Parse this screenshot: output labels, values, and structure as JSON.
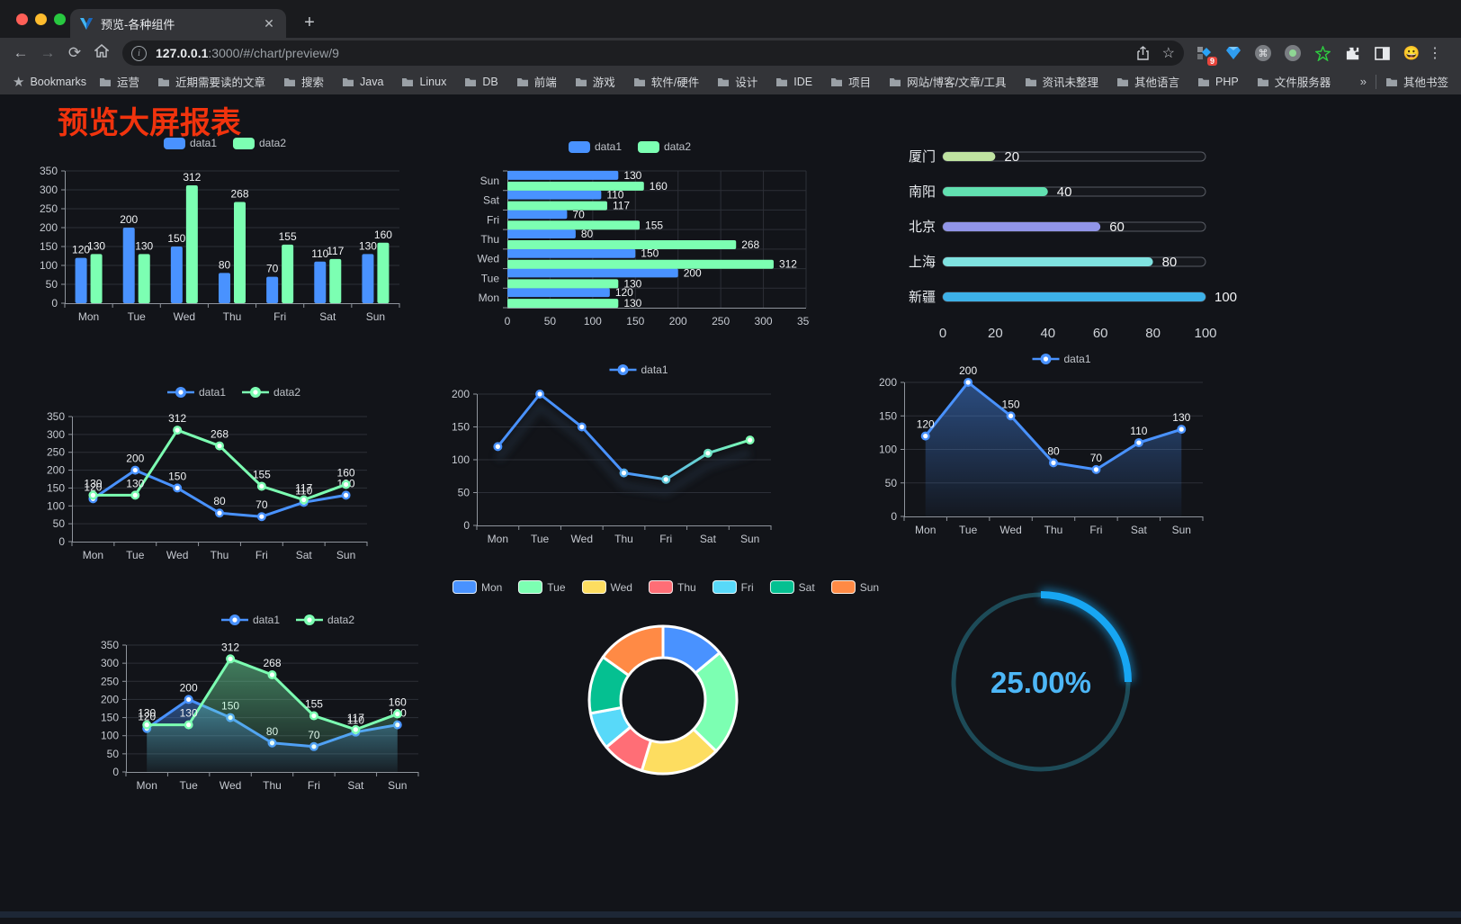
{
  "browser": {
    "tab_title": "预览-各种组件",
    "close_glyph": "✕",
    "new_tab_glyph": "+",
    "url_host": "127.0.0.1",
    "url_rest": ":3000/#/chart/preview/9",
    "bookmarks_label": "Bookmarks",
    "bookmarks": [
      "运营",
      "近期需要读的文章",
      "搜索",
      "Java",
      "Linux",
      "DB",
      "前端",
      "游戏",
      "软件/硬件",
      "设计",
      "IDE",
      "项目",
      "网站/博客/文章/工具",
      "资讯未整理",
      "其他语言",
      "PHP",
      "文件服务器"
    ],
    "overflow_chevron": "»",
    "other_bookmarks": "其他书签",
    "extension_badge": "9"
  },
  "page": {
    "title": "预览大屏报表",
    "title_color": "#f1330d"
  },
  "chart_data": [
    {
      "id": "bar",
      "type": "bar",
      "categories": [
        "Mon",
        "Tue",
        "Wed",
        "Thu",
        "Fri",
        "Sat",
        "Sun"
      ],
      "series": [
        {
          "name": "data1",
          "color": "#4992ff",
          "values": [
            120,
            200,
            150,
            80,
            70,
            110,
            130
          ]
        },
        {
          "name": "data2",
          "color": "#7cffb2",
          "values": [
            130,
            130,
            312,
            268,
            155,
            117,
            160
          ]
        }
      ],
      "ylim": [
        0,
        350
      ],
      "ystep": 50,
      "grid": true,
      "legend_position": "top"
    },
    {
      "id": "hbar",
      "type": "bar",
      "orientation": "horizontal",
      "categories": [
        "Mon",
        "Tue",
        "Wed",
        "Thu",
        "Fri",
        "Sat",
        "Sun"
      ],
      "series": [
        {
          "name": "data1",
          "color": "#4992ff",
          "values": [
            120,
            200,
            150,
            80,
            70,
            110,
            130
          ]
        },
        {
          "name": "data2",
          "color": "#7cffb2",
          "values": [
            130,
            130,
            312,
            268,
            155,
            117,
            160
          ]
        }
      ],
      "xlim": [
        0,
        350
      ],
      "xstep": 50,
      "grid": true,
      "legend_position": "top"
    },
    {
      "id": "capsule",
      "type": "bar",
      "subtype": "capsule-progress",
      "items": [
        {
          "label": "厦门",
          "value": 20,
          "color": "#bfe3a1"
        },
        {
          "label": "南阳",
          "value": 40,
          "color": "#61e0b0"
        },
        {
          "label": "北京",
          "value": 60,
          "color": "#9195e8"
        },
        {
          "label": "上海",
          "value": 80,
          "color": "#7fe2e0"
        },
        {
          "label": "新疆",
          "value": 100,
          "color": "#3db1e8"
        }
      ],
      "xlim": [
        0,
        100
      ],
      "xticks": [
        0,
        20,
        40,
        60,
        80,
        100
      ]
    },
    {
      "id": "line-multi",
      "type": "line",
      "categories": [
        "Mon",
        "Tue",
        "Wed",
        "Thu",
        "Fri",
        "Sat",
        "Sun"
      ],
      "series": [
        {
          "name": "data1",
          "color": "#4992ff",
          "values": [
            120,
            200,
            150,
            80,
            70,
            110,
            130
          ]
        },
        {
          "name": "data2",
          "color": "#7cffb2",
          "values": [
            130,
            130,
            312,
            268,
            155,
            117,
            160
          ]
        }
      ],
      "ylim": [
        0,
        350
      ],
      "ystep": 50,
      "labels": true,
      "legend_position": "top"
    },
    {
      "id": "line-gradient",
      "type": "line",
      "categories": [
        "Mon",
        "Tue",
        "Wed",
        "Thu",
        "Fri",
        "Sat",
        "Sun"
      ],
      "series": [
        {
          "name": "data1",
          "gradient": [
            "#4992ff",
            "#7cffb2"
          ],
          "color": "#4992ff",
          "values": [
            120,
            200,
            150,
            80,
            70,
            110,
            130
          ]
        }
      ],
      "ylim": [
        0,
        200
      ],
      "ystep": 50,
      "labels": false,
      "legend_position": "top"
    },
    {
      "id": "area-single",
      "type": "area",
      "categories": [
        "Mon",
        "Tue",
        "Wed",
        "Thu",
        "Fri",
        "Sat",
        "Sun"
      ],
      "series": [
        {
          "name": "data1",
          "color": "#4992ff",
          "values": [
            120,
            200,
            150,
            80,
            70,
            110,
            130
          ]
        }
      ],
      "ylim": [
        0,
        200
      ],
      "ystep": 50,
      "labels": true,
      "legend_position": "top"
    },
    {
      "id": "area-multi",
      "type": "area",
      "categories": [
        "Mon",
        "Tue",
        "Wed",
        "Thu",
        "Fri",
        "Sat",
        "Sun"
      ],
      "series": [
        {
          "name": "data1",
          "color": "#4992ff",
          "values": [
            120,
            200,
            150,
            80,
            70,
            110,
            130
          ]
        },
        {
          "name": "data2",
          "color": "#7cffb2",
          "values": [
            130,
            130,
            312,
            268,
            155,
            117,
            160
          ]
        }
      ],
      "ylim": [
        0,
        350
      ],
      "ystep": 50,
      "labels": true,
      "legend_position": "top"
    },
    {
      "id": "donut",
      "type": "pie",
      "subtype": "donut",
      "items": [
        {
          "label": "Mon",
          "value": 120,
          "color": "#4992ff"
        },
        {
          "label": "Tue",
          "value": 200,
          "color": "#7cffb2"
        },
        {
          "label": "Wed",
          "value": 150,
          "color": "#fddd60"
        },
        {
          "label": "Thu",
          "value": 80,
          "color": "#ff6e76"
        },
        {
          "label": "Fri",
          "value": 70,
          "color": "#58d9f9"
        },
        {
          "label": "Sat",
          "value": 110,
          "color": "#05c091"
        },
        {
          "label": "Sun",
          "value": 130,
          "color": "#ff8a45"
        }
      ],
      "legend_position": "top"
    },
    {
      "id": "gauge",
      "type": "gauge",
      "value": 25,
      "label": "25.00%",
      "color": "#17a6f3",
      "track_color": "#1d4b58",
      "text_color": "#4db7f7"
    }
  ]
}
